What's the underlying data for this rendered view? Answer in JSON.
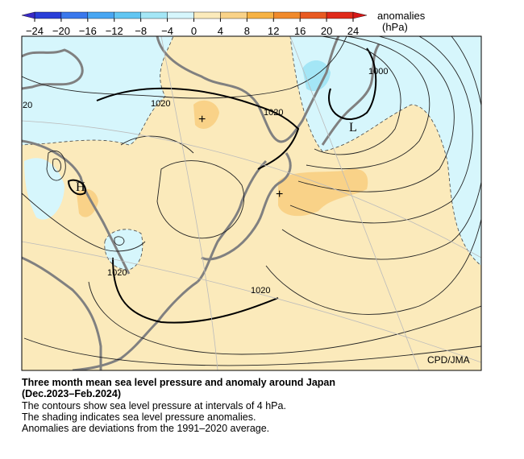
{
  "colorbar": {
    "title": "anomalies",
    "unit": "(hPa)",
    "ticks": [
      {
        "value": -24,
        "label": "−24"
      },
      {
        "value": -20,
        "label": "−20"
      },
      {
        "value": -16,
        "label": "−16"
      },
      {
        "value": -12,
        "label": "−12"
      },
      {
        "value": -8,
        "label": "−8"
      },
      {
        "value": -4,
        "label": "−4"
      },
      0,
      4,
      8,
      12,
      16,
      20,
      24
    ],
    "colors": [
      "#2a3fd8",
      "#3a78ec",
      "#48a6f2",
      "#62c6f2",
      "#a4e6f6",
      "#d6f6fc",
      "#fbeabb",
      "#f9d288",
      "#f6b244",
      "#f08a2c",
      "#e85a22",
      "#e02a1a"
    ],
    "under_color": "#3a2ac8",
    "over_color": "#d81818"
  },
  "map": {
    "contour_labels": [
      "20",
      "1020",
      "1020",
      "1000",
      "1020",
      "1020"
    ],
    "symbols": [
      "L",
      "H",
      "+",
      "+"
    ],
    "credit": "CPD/JMA"
  },
  "caption": {
    "title": "Three month mean sea level pressure and anomaly around Japan",
    "period": "(Dec.2023–Feb.2024)",
    "lines": [
      "The contours show sea level pressure at intervals of 4 hPa.",
      "The shading indicates sea level pressure anomalies.",
      "Anomalies are deviations from the 1991–2020 average."
    ]
  }
}
